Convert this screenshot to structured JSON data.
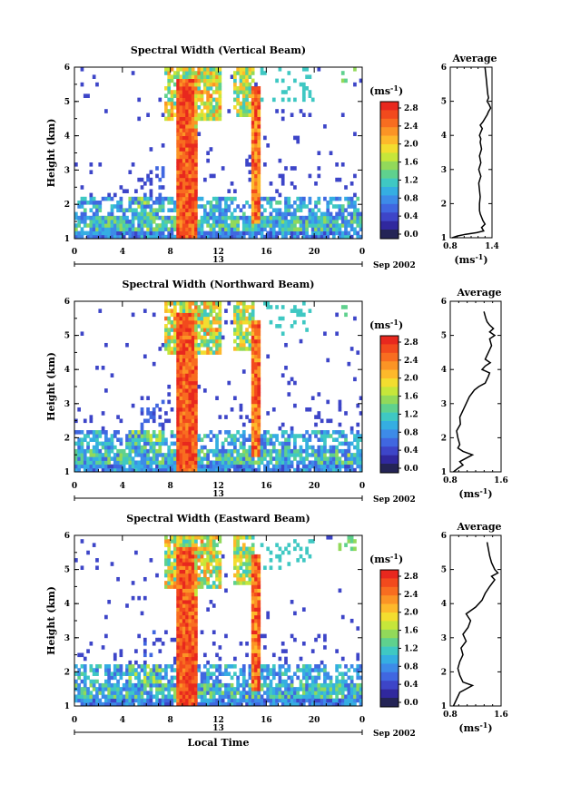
{
  "chart_data": [
    {
      "type": "heatmap",
      "title": "Spectral Width (Vertical Beam)",
      "ylabel": "Height (km)",
      "ylim": [
        1,
        6
      ],
      "y_ticks": [
        "1",
        "2",
        "3",
        "4",
        "5",
        "6"
      ],
      "xlim": [
        0,
        24
      ],
      "x_ticks": [
        "0",
        "4",
        "8",
        "12",
        "16",
        "20",
        "0"
      ],
      "date_day": "13",
      "date_label": "Sep 2002",
      "colorbar": {
        "unit": "(ms⁻¹)",
        "range": [
          0,
          3
        ],
        "ticks": [
          "2.8",
          "2.4",
          "2.0",
          "1.6",
          "1.2",
          "0.8",
          "0.4",
          "0.0"
        ]
      },
      "average": {
        "title": "Average",
        "xlabel": "(ms⁻¹)",
        "x_ticks": [
          "0.8",
          "1.4"
        ],
        "xlim": [
          0.8,
          1.4
        ],
        "y_ticks": [
          "1",
          "2",
          "3",
          "4",
          "5",
          "6"
        ],
        "ylim": [
          1,
          6
        ],
        "profile": [
          [
            0.83,
            1.0
          ],
          [
            0.9,
            1.05
          ],
          [
            1.02,
            1.1
          ],
          [
            1.18,
            1.15
          ],
          [
            1.28,
            1.2
          ],
          [
            1.25,
            1.3
          ],
          [
            1.3,
            1.4
          ],
          [
            1.27,
            1.5
          ],
          [
            1.25,
            1.6
          ],
          [
            1.23,
            1.7
          ],
          [
            1.22,
            1.8
          ],
          [
            1.22,
            1.9
          ],
          [
            1.22,
            2.0
          ],
          [
            1.23,
            2.2
          ],
          [
            1.22,
            2.4
          ],
          [
            1.21,
            2.6
          ],
          [
            1.24,
            2.8
          ],
          [
            1.21,
            3.0
          ],
          [
            1.24,
            3.2
          ],
          [
            1.22,
            3.4
          ],
          [
            1.25,
            3.6
          ],
          [
            1.23,
            3.8
          ],
          [
            1.24,
            3.9
          ],
          [
            1.22,
            4.0
          ],
          [
            1.24,
            4.1
          ],
          [
            1.26,
            4.2
          ],
          [
            1.23,
            4.3
          ],
          [
            1.27,
            4.4
          ],
          [
            1.3,
            4.5
          ],
          [
            1.33,
            4.6
          ],
          [
            1.35,
            4.7
          ],
          [
            1.38,
            4.8
          ],
          [
            1.36,
            4.9
          ],
          [
            1.33,
            5.0
          ],
          [
            1.35,
            5.1
          ],
          [
            1.34,
            5.2
          ],
          [
            1.33,
            5.4
          ],
          [
            1.32,
            5.6
          ],
          [
            1.31,
            5.8
          ],
          [
            1.3,
            6.0
          ]
        ]
      }
    },
    {
      "type": "heatmap",
      "title": "Spectral Width (Northward Beam)",
      "ylabel": "Height (km)",
      "ylim": [
        1,
        6
      ],
      "y_ticks": [
        "1",
        "2",
        "3",
        "4",
        "5",
        "6"
      ],
      "xlim": [
        0,
        24
      ],
      "x_ticks": [
        "0",
        "4",
        "8",
        "12",
        "16",
        "20",
        "0"
      ],
      "date_day": "13",
      "date_label": "Sep 2002",
      "colorbar": {
        "unit": "(ms⁻¹)",
        "range": [
          0,
          3
        ],
        "ticks": [
          "2.8",
          "2.4",
          "2.0",
          "1.6",
          "1.2",
          "0.8",
          "0.4",
          "0.0"
        ]
      },
      "average": {
        "title": "Average",
        "xlabel": "(ms⁻¹)",
        "x_ticks": [
          "0.8",
          "1.6"
        ],
        "xlim": [
          0.8,
          1.6
        ],
        "y_ticks": [
          "1",
          "2",
          "3",
          "4",
          "5",
          "6"
        ],
        "ylim": [
          1,
          6
        ],
        "profile": [
          [
            0.85,
            1.0
          ],
          [
            0.92,
            1.1
          ],
          [
            1.0,
            1.2
          ],
          [
            0.95,
            1.3
          ],
          [
            1.15,
            1.5
          ],
          [
            1.0,
            1.6
          ],
          [
            0.92,
            1.7
          ],
          [
            0.95,
            1.8
          ],
          [
            0.92,
            2.0
          ],
          [
            0.9,
            2.2
          ],
          [
            0.96,
            2.4
          ],
          [
            0.95,
            2.6
          ],
          [
            1.0,
            2.8
          ],
          [
            1.05,
            3.0
          ],
          [
            1.1,
            3.2
          ],
          [
            1.18,
            3.4
          ],
          [
            1.25,
            3.5
          ],
          [
            1.35,
            3.6
          ],
          [
            1.4,
            3.8
          ],
          [
            1.42,
            3.9
          ],
          [
            1.3,
            4.0
          ],
          [
            1.35,
            4.1
          ],
          [
            1.43,
            4.2
          ],
          [
            1.35,
            4.3
          ],
          [
            1.4,
            4.5
          ],
          [
            1.45,
            4.7
          ],
          [
            1.42,
            4.9
          ],
          [
            1.5,
            5.0
          ],
          [
            1.42,
            5.1
          ],
          [
            1.48,
            5.2
          ],
          [
            1.42,
            5.3
          ],
          [
            1.38,
            5.4
          ],
          [
            1.36,
            5.5
          ],
          [
            1.33,
            5.7
          ]
        ]
      }
    },
    {
      "type": "heatmap",
      "title": "Spectral Width (Eastward Beam)",
      "ylabel": "Height (km)",
      "ylim": [
        1,
        6
      ],
      "y_ticks": [
        "1",
        "2",
        "3",
        "4",
        "5",
        "6"
      ],
      "xlim": [
        0,
        24
      ],
      "x_ticks": [
        "0",
        "4",
        "8",
        "12",
        "16",
        "20",
        "0"
      ],
      "xlabel": "Local Time",
      "date_day": "13",
      "date_label": "Sep 2002",
      "colorbar": {
        "unit": "(ms⁻¹)",
        "range": [
          0,
          3
        ],
        "ticks": [
          "2.8",
          "2.4",
          "2.0",
          "1.6",
          "1.2",
          "0.8",
          "0.4",
          "0.0"
        ]
      },
      "average": {
        "title": "Average",
        "xlabel": "(ms⁻¹)",
        "x_ticks": [
          "0.8",
          "1.6"
        ],
        "xlim": [
          0.8,
          1.6
        ],
        "y_ticks": [
          "1",
          "2",
          "3",
          "4",
          "5",
          "6"
        ],
        "ylim": [
          1,
          6
        ],
        "profile": [
          [
            0.85,
            1.0
          ],
          [
            0.9,
            1.2
          ],
          [
            0.95,
            1.4
          ],
          [
            1.15,
            1.6
          ],
          [
            1.0,
            1.7
          ],
          [
            0.95,
            1.9
          ],
          [
            0.92,
            2.1
          ],
          [
            0.95,
            2.3
          ],
          [
            1.0,
            2.5
          ],
          [
            0.97,
            2.7
          ],
          [
            1.05,
            2.9
          ],
          [
            1.0,
            3.1
          ],
          [
            1.08,
            3.3
          ],
          [
            1.12,
            3.5
          ],
          [
            1.05,
            3.7
          ],
          [
            1.2,
            3.9
          ],
          [
            1.3,
            4.1
          ],
          [
            1.35,
            4.3
          ],
          [
            1.42,
            4.5
          ],
          [
            1.5,
            4.7
          ],
          [
            1.45,
            4.8
          ],
          [
            1.55,
            4.9
          ],
          [
            1.5,
            5.0
          ],
          [
            1.45,
            5.2
          ],
          [
            1.42,
            5.4
          ],
          [
            1.4,
            5.6
          ],
          [
            1.38,
            5.8
          ]
        ]
      }
    }
  ]
}
